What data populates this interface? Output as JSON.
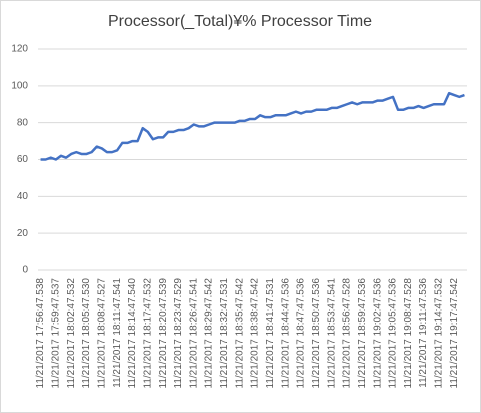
{
  "chart_data": {
    "type": "line",
    "title": "Processor(_Total)¥% Processor Time",
    "categories": [
      "11/21/2017 17:56:47.538",
      null,
      null,
      "11/21/2017 17:59:47.537",
      null,
      null,
      "11/21/2017 18:02:47.532",
      null,
      null,
      "11/21/2017 18:05:47.530",
      null,
      null,
      "11/21/2017 18:08:47.527",
      null,
      null,
      "11/21/2017 18:11:47.541",
      null,
      null,
      "11/21/2017 18:14:47.540",
      null,
      null,
      "11/21/2017 18:17:47.532",
      null,
      null,
      "11/21/2017 18:20:47.539",
      null,
      null,
      "11/21/2017 18:23:47.529",
      null,
      null,
      "11/21/2017 18:26:47.541",
      null,
      null,
      "11/21/2017 18:29:47.542",
      null,
      null,
      "11/21/2017 18:32:47.531",
      null,
      null,
      "11/21/2017 18:35:47.542",
      null,
      null,
      "11/21/2017 18:38:47.542",
      null,
      null,
      "11/21/2017 18:41:47.531",
      null,
      null,
      "11/21/2017 18:44:47.536",
      null,
      null,
      "11/21/2017 18:47:47.536",
      null,
      null,
      "11/21/2017 18:50:47.536",
      null,
      null,
      "11/21/2017 18:53:47.541",
      null,
      null,
      "11/21/2017 18:56:47.528",
      null,
      null,
      "11/21/2017 18:59:47.536",
      null,
      null,
      "11/21/2017 19:02:47.536",
      null,
      null,
      "11/21/2017 19:05:47.536",
      null,
      null,
      "11/21/2017 19:08:47.528",
      null,
      null,
      "11/21/2017 19:11:47.536",
      null,
      null,
      "11/21/2017 19:14:47.532",
      null,
      null,
      "11/21/2017 19:17:47.542",
      null,
      null
    ],
    "values": [
      60,
      60,
      61,
      60,
      62,
      61,
      63,
      64,
      63,
      63,
      64,
      67,
      66,
      64,
      64,
      65,
      69,
      69,
      70,
      70,
      77,
      75,
      71,
      72,
      72,
      75,
      75,
      76,
      76,
      77,
      79,
      78,
      78,
      79,
      80,
      80,
      80,
      80,
      80,
      81,
      81,
      82,
      82,
      84,
      83,
      83,
      84,
      84,
      84,
      85,
      86,
      85,
      86,
      86,
      87,
      87,
      87,
      88,
      88,
      89,
      90,
      91,
      90,
      91,
      91,
      91,
      92,
      92,
      93,
      94,
      87,
      87,
      88,
      88,
      89,
      88,
      89,
      90,
      90,
      90,
      96,
      95,
      94,
      95
    ],
    "color": "#4472c4",
    "ylim": [
      0,
      120
    ],
    "yticks": [
      0,
      20,
      40,
      60,
      80,
      100,
      120
    ],
    "grid": true
  }
}
